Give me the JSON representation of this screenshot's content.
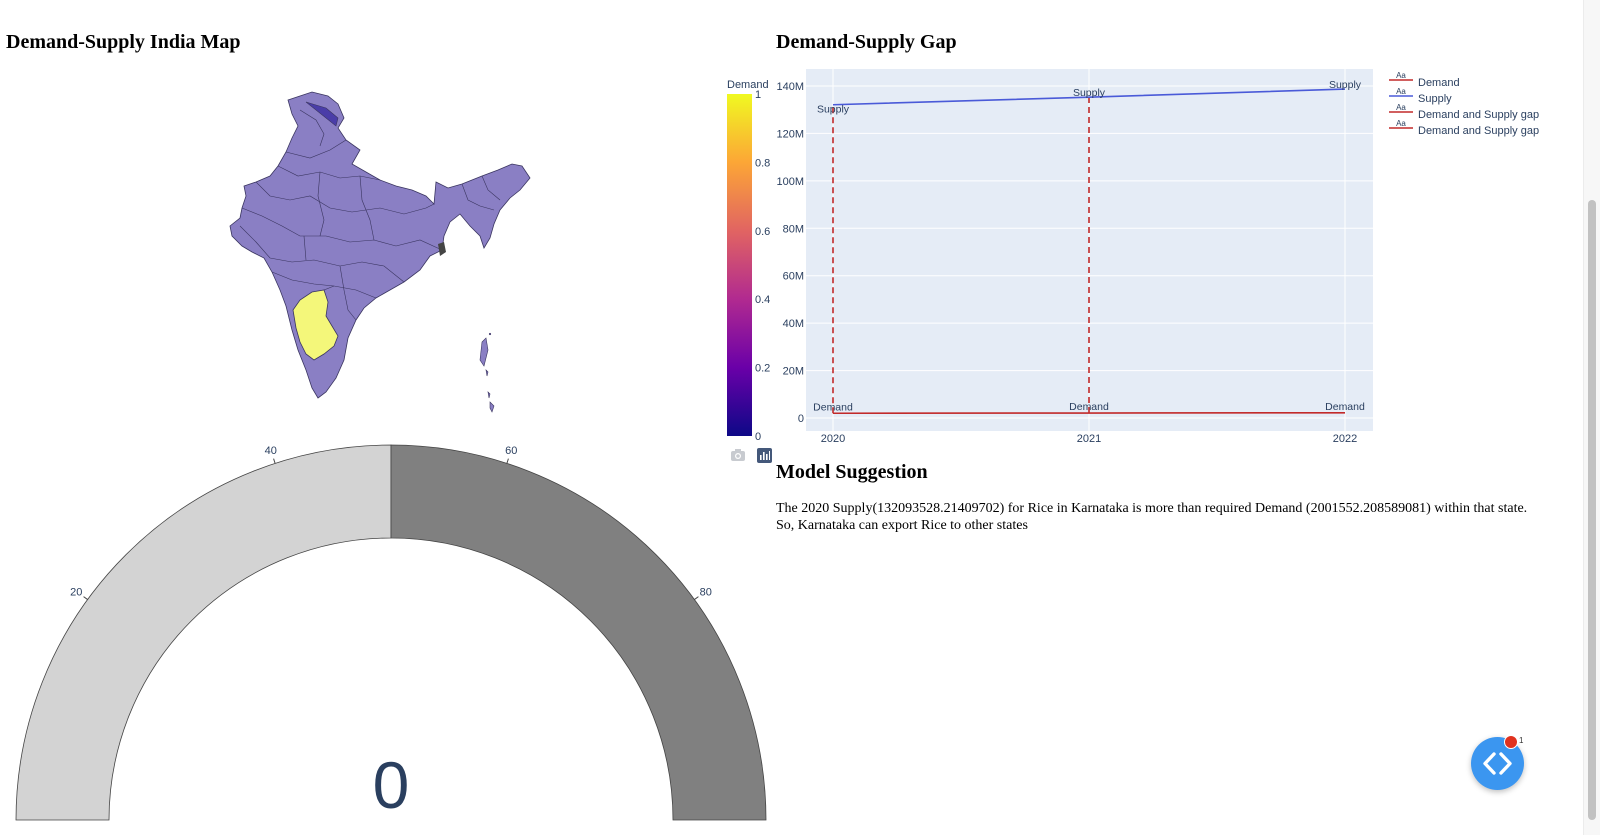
{
  "sections": {
    "map_title": "Demand-Supply India Map",
    "gap_title": "Demand-Supply Gap",
    "model_title": "Model Suggestion",
    "model_text": "The 2020 Supply(132093528.21409702) for Rice in Karnataka is more than required Demand (2001552.208589081) within that state. So, Karnataka can export Rice to other states"
  },
  "map": {
    "colorbar_title": "Demand",
    "colorbar_ticks": [
      1,
      0.8,
      0.6,
      0.4,
      0.2,
      0
    ],
    "base_color": "#8a7fc4",
    "highlight_color": "#f4f77a",
    "highlight_state": "Karnataka"
  },
  "modebar": {
    "camera_icon": "camera-icon",
    "plotly_icon": "plotly-logo-icon"
  },
  "gauge": {
    "value": 0,
    "range": [
      0,
      100
    ],
    "ticks": [
      20,
      40,
      60,
      80
    ],
    "filled_color": "#d3d3d3",
    "remaining_color": "#808080"
  },
  "chart_data": {
    "type": "line",
    "x": [
      2020,
      2021,
      2022
    ],
    "xticks": [
      "2020",
      "2021",
      "2022"
    ],
    "yticks": [
      "0",
      "20M",
      "40M",
      "60M",
      "80M",
      "100M",
      "120M",
      "140M"
    ],
    "ylim": [
      0,
      140000000
    ],
    "series": [
      {
        "name": "Demand",
        "color": "#c22a2a",
        "values": [
          2001552,
          2100000,
          2200000
        ],
        "label": "Demand"
      },
      {
        "name": "Supply",
        "color": "#4a5ad8",
        "values": [
          132093528,
          135300000,
          138700000
        ],
        "label": "Supply"
      }
    ],
    "gap_series": [
      {
        "name": "Demand and Supply gap",
        "x": 2020,
        "from": 2001552,
        "to": 132093528
      },
      {
        "name": "Demand and Supply gap",
        "x": 2021,
        "from": 2100000,
        "to": 135300000
      }
    ],
    "legend": [
      "Demand",
      "Supply",
      "Demand and Supply gap",
      "Demand and Supply gap"
    ],
    "legend_placement": "top-right",
    "background": "#e5ecf6",
    "grid": true
  },
  "dev_tools": {
    "badge_count": "1"
  }
}
